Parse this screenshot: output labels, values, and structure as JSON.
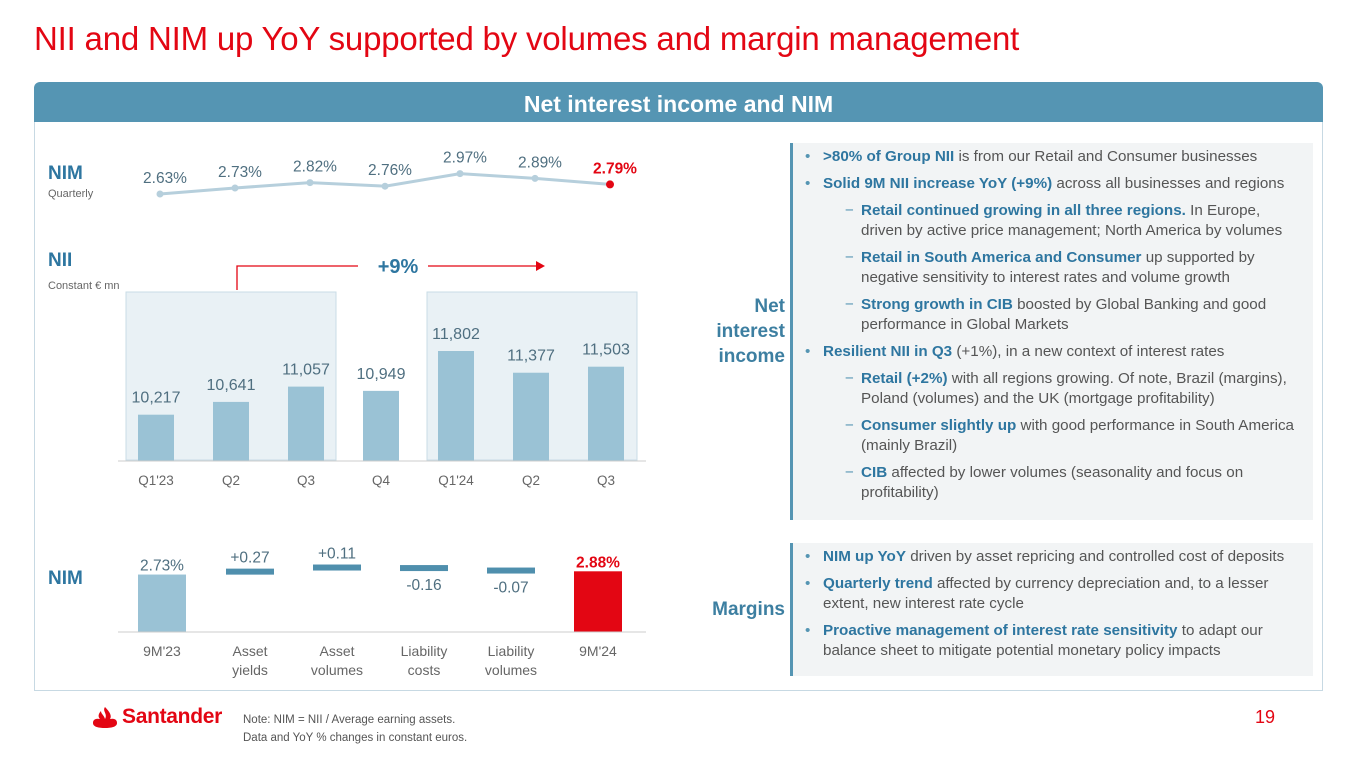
{
  "title": "NII and NIM up YoY supported by volumes and margin management",
  "banner": "Net interest income and NIM",
  "colors": {
    "brand_red": "#e30613",
    "banner_blue": "#5595b3",
    "bar_light": "#9ac2d5",
    "bar_dark": "#4f8fad",
    "highlight_fill": "#e9f1f5",
    "nim_line": "#b6cfdc",
    "label_blue": "#2e76a0"
  },
  "chart_data": [
    {
      "type": "line",
      "title": "NIM",
      "subtitle": "Quarterly",
      "categories": [
        "Q1'23",
        "Q2",
        "Q3",
        "Q4",
        "Q1'24",
        "Q2",
        "Q3"
      ],
      "values": [
        2.63,
        2.73,
        2.82,
        2.76,
        2.97,
        2.89,
        2.79
      ],
      "labels": [
        "2.63%",
        "2.73%",
        "2.82%",
        "2.76%",
        "2.97%",
        "2.89%",
        "2.79%"
      ],
      "ylim": [
        2.5,
        3.1
      ]
    },
    {
      "type": "bar",
      "title": "NII",
      "subtitle": "Constant € mn",
      "categories": [
        "Q1'23",
        "Q2",
        "Q3",
        "Q4",
        "Q1'24",
        "Q2",
        "Q3"
      ],
      "values": [
        10217,
        10641,
        11057,
        10949,
        11802,
        11377,
        11503
      ],
      "labels": [
        "10,217",
        "10,641",
        "11,057",
        "10,949",
        "11,802",
        "11,377",
        "11,503"
      ],
      "annotation": "+9%",
      "ylim": [
        0,
        11802
      ]
    },
    {
      "type": "bar",
      "subtype": "waterfall",
      "title": "NIM",
      "categories": [
        "9M'23",
        "Asset yields",
        "Asset volumes",
        "Liability costs",
        "Liability volumes",
        "9M'24"
      ],
      "category_lines": [
        [
          "9M'23"
        ],
        [
          "Asset",
          "yields"
        ],
        [
          "Asset",
          "volumes"
        ],
        [
          "Liability",
          "costs"
        ],
        [
          "Liability",
          "volumes"
        ],
        [
          "9M'24"
        ]
      ],
      "values": [
        2.73,
        0.27,
        0.11,
        -0.16,
        -0.07,
        2.88
      ],
      "labels": [
        "2.73%",
        "+0.27",
        "+0.11",
        "-0.16",
        "-0.07",
        "2.88%"
      ]
    }
  ],
  "sections": [
    {
      "label_lines": [
        "Net",
        "interest",
        "income"
      ],
      "bullets": [
        {
          "level": 1,
          "bold": ">80% of Group NII",
          "rest": " is from our Retail and Consumer businesses"
        },
        {
          "level": 1,
          "bold": "Solid 9M NII increase YoY (+9%)",
          "rest": " across all businesses and regions"
        },
        {
          "level": 2,
          "bold": "Retail continued growing in all three regions.",
          "rest": " In Europe, driven by active price management; North America by volumes"
        },
        {
          "level": 2,
          "bold": "Retail in South America and Consumer",
          "rest": " up supported by negative sensitivity to interest rates and volume growth"
        },
        {
          "level": 2,
          "bold": "Strong growth in CIB",
          "rest": " boosted by Global Banking and good performance in Global Markets"
        },
        {
          "level": 1,
          "bold": "Resilient NII in Q3",
          "rest": " (+1%), in a new context of interest rates"
        },
        {
          "level": 2,
          "bold": "Retail (+2%)",
          "rest": " with all regions growing. Of note, Brazil (margins), Poland (volumes) and the UK (mortgage profitability)"
        },
        {
          "level": 2,
          "bold": "Consumer slightly up",
          "rest": " with good performance in South America (mainly Brazil)"
        },
        {
          "level": 2,
          "bold": "CIB",
          "rest": " affected by lower volumes (seasonality and focus on profitability)"
        }
      ]
    },
    {
      "label_lines": [
        "Margins"
      ],
      "bullets": [
        {
          "level": 1,
          "bold": "NIM up YoY",
          "rest": " driven by asset repricing and controlled cost of deposits"
        },
        {
          "level": 1,
          "bold": "Quarterly trend",
          "rest": " affected by currency depreciation and, to a lesser extent, new interest rate cycle"
        },
        {
          "level": 1,
          "bold": "Proactive management of interest rate sensitivity",
          "rest": " to adapt our balance sheet to mitigate potential monetary policy impacts"
        }
      ]
    }
  ],
  "bullet_marker": "•",
  "dash_marker": "−",
  "footer": {
    "logo": "Santander",
    "note_lines": [
      "Note: NIM = NII / Average earning assets.",
      "Data and YoY % changes in constant euros."
    ],
    "page_number": "19"
  }
}
